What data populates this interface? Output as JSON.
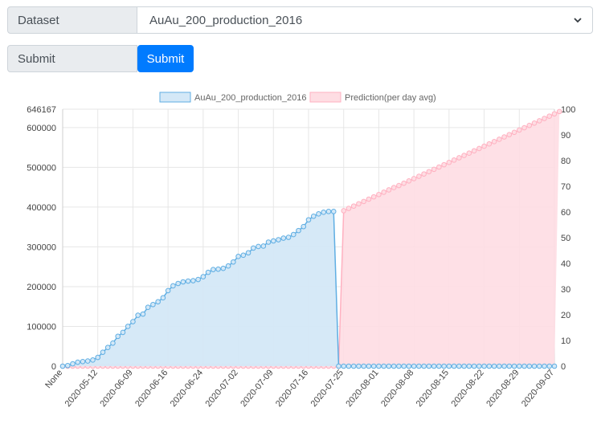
{
  "form": {
    "dataset_label": "Dataset",
    "dataset_value": "AuAu_200_production_2016",
    "submit_label": "Submit",
    "submit_button": "Submit"
  },
  "colors": {
    "accent": "#007bff",
    "series1_line": "#5faee3",
    "series1_fill": "#d4e8f7",
    "series2_line": "#ffb1c1",
    "series2_fill": "#fedde3"
  },
  "icons": {
    "dropdown": "chevron-down-icon"
  },
  "chart_data": {
    "type": "line",
    "legend": [
      "AuAu_200_production_2016",
      "Prediction(per day avg)"
    ],
    "legend_position": "top",
    "x_tick_labels": [
      "None",
      "2020-05-12",
      "2020-06-09",
      "2020-06-16",
      "2020-06-24",
      "2020-07-02",
      "2020-07-09",
      "2020-07-16",
      "2020-07-25",
      "2020-08-01",
      "2020-08-08",
      "2020-08-15",
      "2020-08-22",
      "2020-08-29",
      "2020-09-07"
    ],
    "x_tick_index": [
      0,
      7,
      14,
      21,
      28,
      35,
      42,
      49,
      56,
      63,
      70,
      77,
      84,
      91,
      98
    ],
    "y_left": {
      "min": 0,
      "max": 646167,
      "ticks": [
        0,
        100000,
        200000,
        300000,
        400000,
        500000,
        600000,
        646167
      ]
    },
    "y_right": {
      "min": 0,
      "max": 100,
      "ticks": [
        0,
        10,
        20,
        30,
        40,
        50,
        60,
        70,
        80,
        90,
        100
      ]
    },
    "grid": true,
    "series": [
      {
        "name": "AuAu_200_production_2016",
        "axis": "left",
        "values": [
          0,
          1500,
          6000,
          10000,
          11500,
          13000,
          15500,
          22000,
          35000,
          47000,
          58000,
          75000,
          85000,
          100000,
          112000,
          128000,
          131000,
          148000,
          155000,
          162000,
          172000,
          190000,
          202000,
          208000,
          212000,
          214000,
          215000,
          218000,
          225000,
          236000,
          243000,
          244000,
          246000,
          252000,
          262000,
          276000,
          279000,
          285000,
          297000,
          301000,
          302000,
          312000,
          315000,
          318000,
          322000,
          324000,
          331000,
          341000,
          351000,
          368000,
          377000,
          383000,
          387000,
          389000,
          389000,
          0,
          0,
          0,
          0,
          0,
          0,
          0,
          0,
          0,
          0,
          0,
          0,
          0,
          0,
          0,
          0,
          0,
          0,
          0,
          0,
          0,
          0,
          0,
          0,
          0,
          0,
          0,
          0,
          0,
          0,
          0,
          0,
          0,
          0,
          0,
          0,
          0,
          0,
          0,
          0,
          0,
          0,
          0,
          0
        ]
      },
      {
        "name": "Prediction(per day avg)",
        "axis": "right",
        "values": [
          0,
          0,
          0,
          0,
          0,
          0,
          0,
          0,
          0,
          0,
          0,
          0,
          0,
          0,
          0,
          0,
          0,
          0,
          0,
          0,
          0,
          0,
          0,
          0,
          0,
          0,
          0,
          0,
          0,
          0,
          0,
          0,
          0,
          0,
          0,
          0,
          0,
          0,
          0,
          0,
          0,
          0,
          0,
          0,
          0,
          0,
          0,
          0,
          0,
          0,
          0,
          0,
          0,
          0,
          0,
          0,
          60.5,
          61.4,
          62.3,
          63.2,
          64.1,
          65.0,
          65.9,
          66.8,
          67.7,
          68.6,
          69.5,
          70.3,
          71.2,
          72.1,
          73.0,
          73.9,
          74.8,
          75.7,
          76.6,
          77.5,
          78.4,
          79.3,
          80.2,
          81.1,
          82.0,
          82.9,
          83.8,
          84.7,
          85.6,
          86.5,
          87.4,
          88.3,
          89.2,
          90.1,
          91.0,
          91.9,
          92.8,
          93.7,
          94.6,
          95.5,
          96.4,
          97.3,
          98.2,
          99.1
        ]
      }
    ]
  }
}
